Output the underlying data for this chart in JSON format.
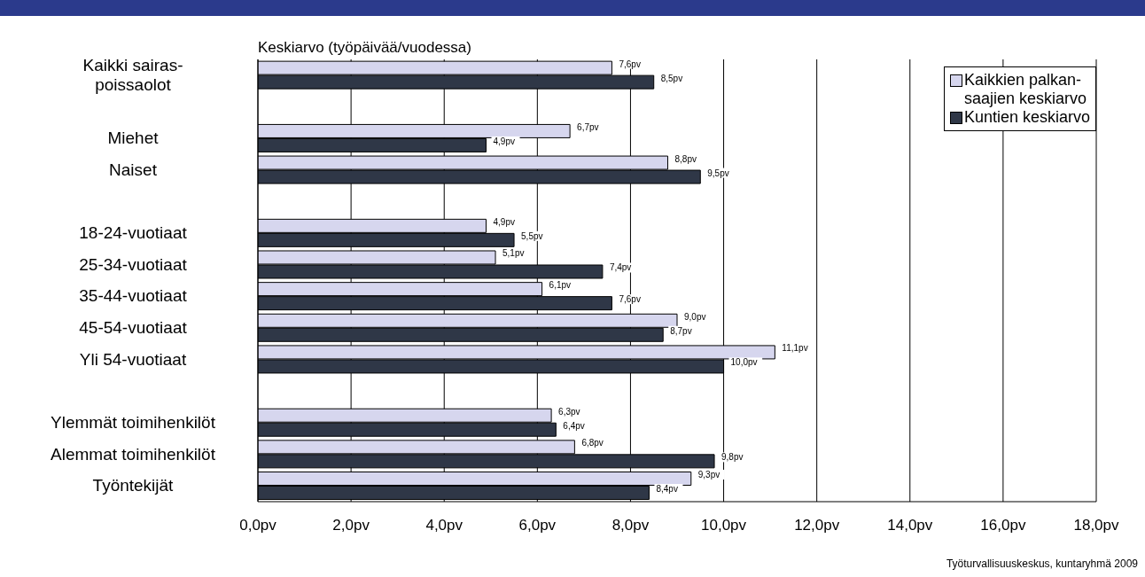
{
  "chart_data": {
    "type": "bar",
    "orientation": "horizontal",
    "title": "Keskiarvo (työpäivää/vuodessa)",
    "categories": [
      "Kaikki sairas-\npoissaolot",
      null,
      "Miehet",
      "Naiset",
      null,
      "18-24-vuotiaat",
      "25-34-vuotiaat",
      "35-44-vuotiaat",
      "45-54-vuotiaat",
      "Yli 54-vuotiaat",
      null,
      "Ylemmät toimihenkilöt",
      "Alemmat toimihenkilöt",
      "Työntekijät"
    ],
    "series": [
      {
        "name": "Kaikkien palkan-\nsaajien keskiarvo",
        "color": "#d6d6ee",
        "values": [
          7.6,
          null,
          6.7,
          8.8,
          null,
          4.9,
          5.1,
          6.1,
          9.0,
          11.1,
          null,
          6.3,
          6.8,
          9.3
        ],
        "value_labels": [
          "7,6pv",
          null,
          "6,7pv",
          "8,8pv",
          null,
          "4,9pv",
          "5,1pv",
          "6,1pv",
          "9,0pv",
          "11,1pv",
          null,
          "6,3pv",
          "6,8pv",
          "9,3pv"
        ]
      },
      {
        "name": "Kuntien keskiarvo",
        "color": "#2f3747",
        "values": [
          8.5,
          null,
          4.9,
          9.5,
          null,
          5.5,
          7.4,
          7.6,
          8.7,
          10.0,
          null,
          6.4,
          9.8,
          8.4
        ],
        "value_labels": [
          "8,5pv",
          null,
          "4,9pv",
          "9,5pv",
          null,
          "5,5pv",
          "7,4pv",
          "7,6pv",
          "8,7pv",
          "10,0pv",
          null,
          "6,4pv",
          "9,8pv",
          "8,4pv"
        ]
      }
    ],
    "xlim": [
      0,
      18
    ],
    "xticks": [
      {
        "value": 0,
        "label": "0,0pv"
      },
      {
        "value": 2,
        "label": "2,0pv"
      },
      {
        "value": 4,
        "label": "4,0pv"
      },
      {
        "value": 6,
        "label": "6,0pv"
      },
      {
        "value": 8,
        "label": "8,0pv"
      },
      {
        "value": 10,
        "label": "10,0pv"
      },
      {
        "value": 12,
        "label": "12,0pv"
      },
      {
        "value": 14,
        "label": "14,0pv"
      },
      {
        "value": 16,
        "label": "16,0pv"
      },
      {
        "value": 18,
        "label": "18,0pv"
      }
    ],
    "grid": "x",
    "legend": "top right",
    "annotations": [
      "Työturvallisuuskeskus, kuntaryhmä 2009"
    ]
  }
}
